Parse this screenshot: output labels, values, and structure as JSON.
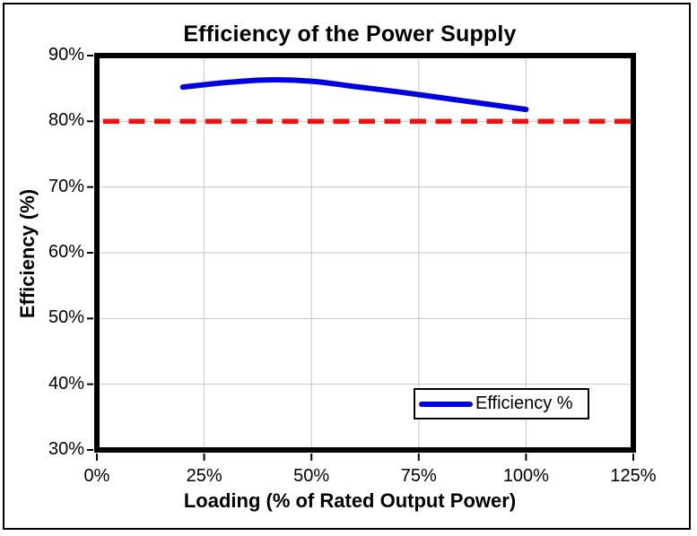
{
  "figure": {
    "background": "#FFFFFF",
    "outer_border_color": "#000000"
  },
  "chart_data": {
    "type": "line",
    "title": "Efficiency of the Power Supply",
    "xlabel": "Loading (% of Rated Output Power)",
    "ylabel": "Efficiency (%)",
    "xlim": [
      0,
      125
    ],
    "ylim": [
      30,
      90
    ],
    "x_ticks": [
      0,
      25,
      50,
      75,
      100,
      125
    ],
    "x_tick_labels": [
      "0%",
      "25%",
      "50%",
      "75%",
      "100%",
      "125%"
    ],
    "y_ticks": [
      30,
      40,
      50,
      60,
      70,
      80,
      90
    ],
    "y_tick_labels": [
      "30%",
      "40%",
      "50%",
      "60%",
      "70%",
      "80%",
      "90%"
    ],
    "grid": true,
    "grid_color": "#C6C6C6",
    "axis_color": "#000000",
    "series": [
      {
        "name": "Efficiency %",
        "color": "#0000E0",
        "x": [
          20,
          30,
          40,
          50,
          60,
          70,
          80,
          90,
          100
        ],
        "y": [
          85.2,
          85.9,
          86.3,
          86.1,
          85.3,
          84.5,
          83.6,
          82.7,
          81.8
        ]
      }
    ],
    "reference_line": {
      "value": 80,
      "color": "#EE1111",
      "style": "dashed"
    },
    "legend": {
      "position": "bottom-right",
      "label": "Efficiency %"
    }
  }
}
